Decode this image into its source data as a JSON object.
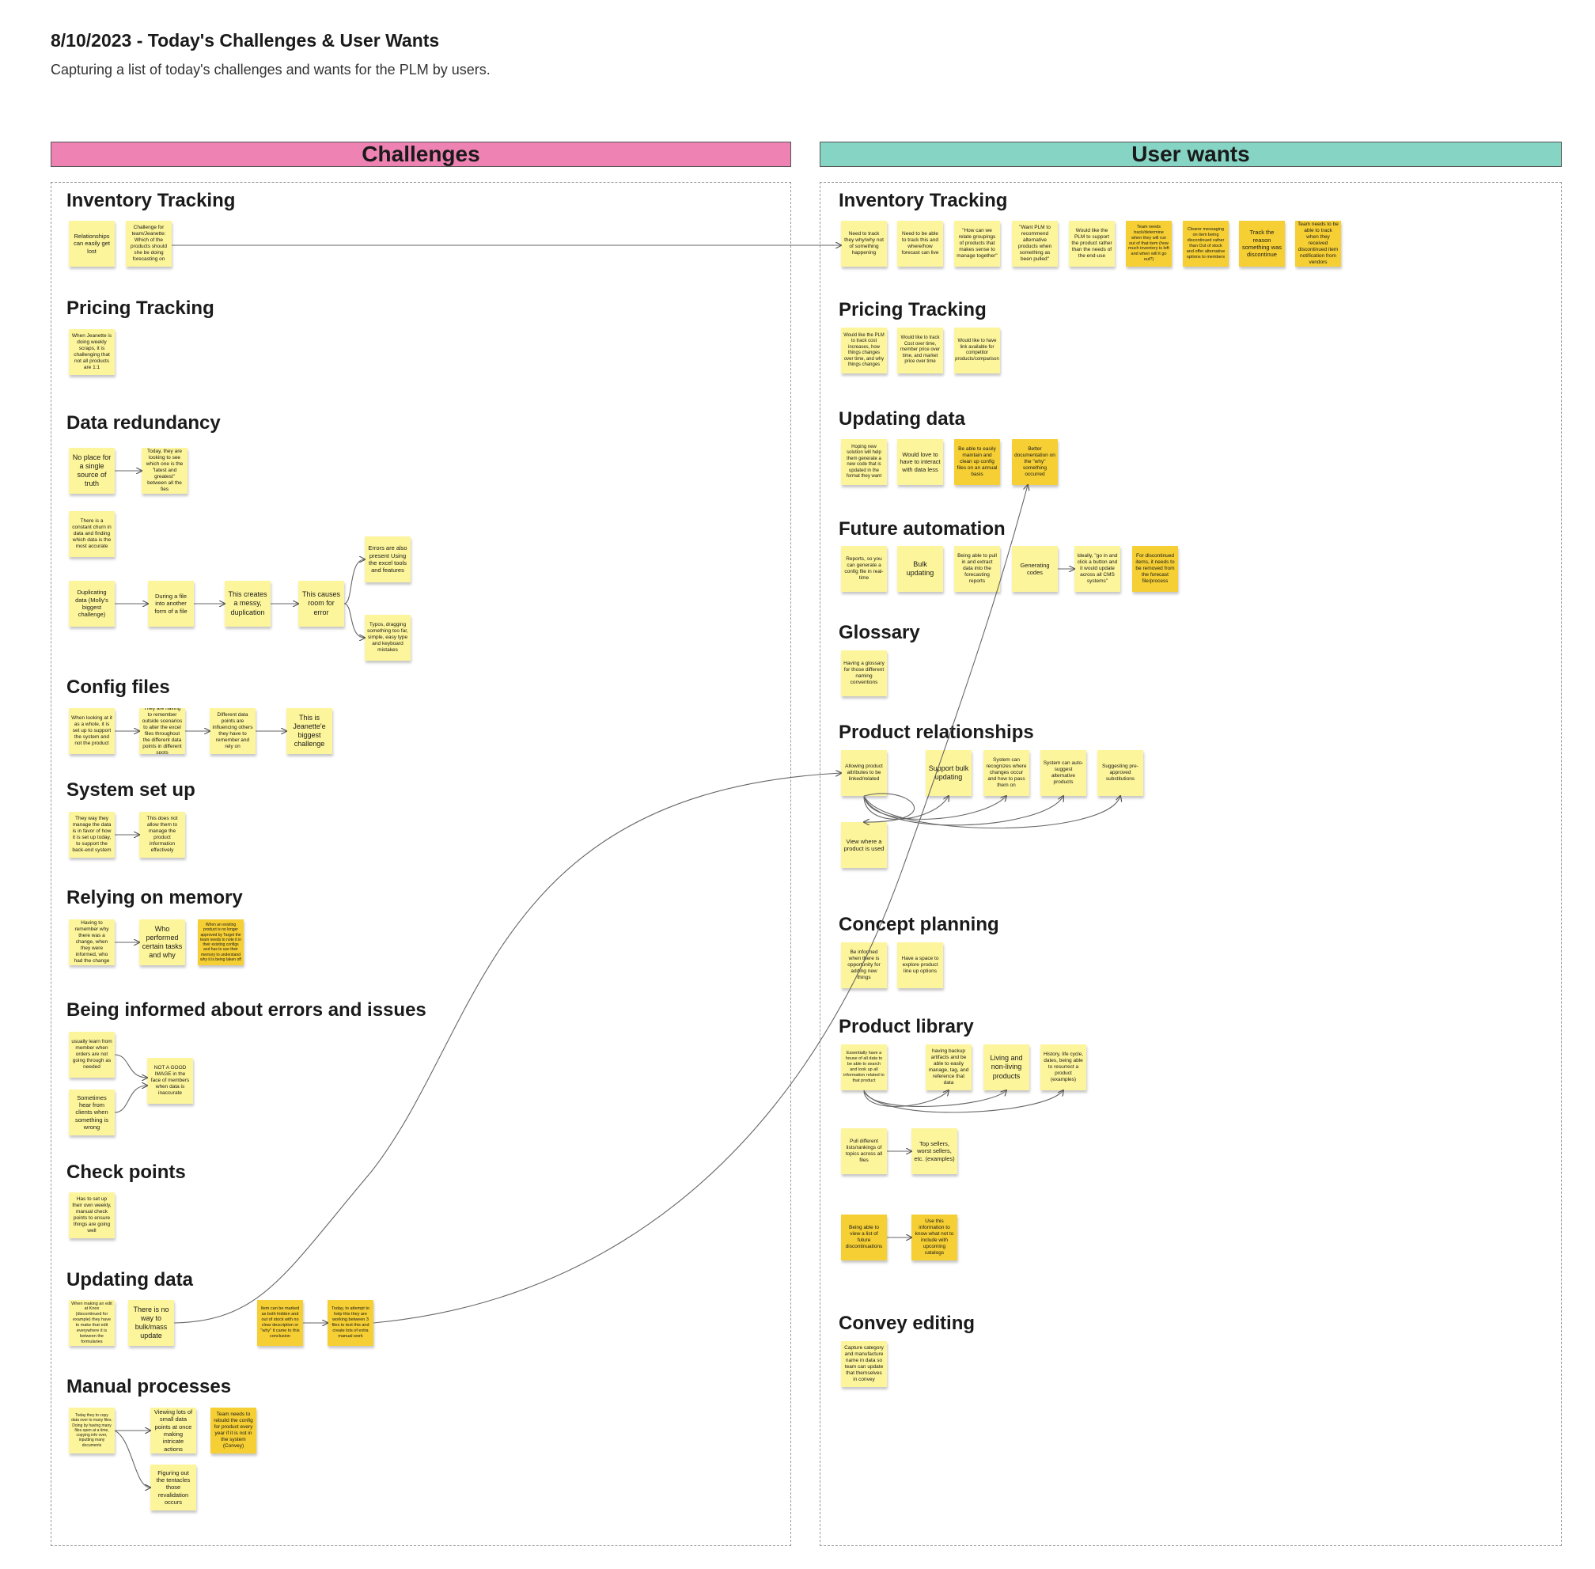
{
  "board": {
    "title": "8/10/2023 - Today's Challenges & User Wants",
    "subtitle": "Capturing a list of today's challenges and wants for the PLM by users."
  },
  "headers": {
    "challenges": "Challenges",
    "user_wants": "User wants"
  },
  "colors": {
    "challenges_header": "#ee82b3",
    "user_wants_header": "#86d4c4",
    "sticky_light": "#fdf59b",
    "sticky_dark": "#f5cf34"
  },
  "challenges": {
    "inventory_tracking": {
      "title": "Inventory Tracking",
      "notes": [
        "Relationships can easily get lost",
        "Challenge for team/Jeanette: Which of the products should she be doing forecasting on"
      ]
    },
    "pricing_tracking": {
      "title": "Pricing Tracking",
      "notes": [
        "When Jeanette is doing weekly scraps, it is challenging that not all products are 1:1"
      ]
    },
    "data_redundancy": {
      "title": "Data redundancy",
      "notes": [
        "No place for a single source of truth",
        "Today, they are looking to see which one is the \"latest and greatest\" between all the fies",
        "There is a constant churn in data and finding which data is the most accurate",
        "Duplicating data (Molly's biggest challenge)",
        "During a file into another form of a file",
        "This creates a messy, duplication",
        "This causes room for error",
        "Errors are also present Using the excel tools and features",
        "Typos, dragging something too far, simple, easy type and keyboard mistakes"
      ]
    },
    "config_files": {
      "title": "Config files",
      "notes": [
        "When looking at it as a whole, it is set up to support the system and not the product",
        "They are having to remember outside scenarios to alter the excel files throughout the different data points in different spots",
        "Different data points are influencing others they have to remember and rely on",
        "This is Jeanette'e biggest challenge"
      ]
    },
    "system_set_up": {
      "title": "System set up",
      "notes": [
        "They way they manage the data is in favor of how it is set up today, to support the back-end system",
        "This does not allow them to manage the product information effectively"
      ]
    },
    "relying_on_memory": {
      "title": "Relying on memory",
      "notes": [
        "Having to remember why there was a change, when they were informed, who had the change",
        "Who performed certain tasks and why",
        "When an existing product is no longer approved by Target the team needs to note it in their existing configs and has to use their memory to understand why it is being taken off"
      ]
    },
    "being_informed": {
      "title": "Being informed about errors and issues",
      "notes": [
        "usually learn from member when orders are not going through as needed",
        "Sometimes hear from clients when something is wrong",
        "NOT A GOOD IMAGE in the face of members when data is inaccurate"
      ]
    },
    "check_points": {
      "title": "Check points",
      "notes": [
        "Has to set up their own weekly, manual check points to ensure things are going well"
      ]
    },
    "updating_data": {
      "title": "Updating data",
      "notes": [
        "When making an edit at Knox (discontinued for example) they have to make that edit everywhere it is between the formularies",
        "There is no way to bulk/mass update",
        "Item can be marked as both hidden and out of stock with no clear description or \"why\" it came to this conclusion",
        "Today, to attempt to help this they are working between 3 files to test this and create lots of extra manual work"
      ]
    },
    "manual_processes": {
      "title": "Manual processes",
      "notes": [
        "Today they to copy data over to many files. Doing by having many files open at a time, copying info over, inputting many documents",
        "Viewing lots of small data points at once making intricate actions",
        "Team needs to rebuild the config for product every year if it is not in the system (Convey)",
        "Figuring out the tentacles those revalidation occurs"
      ]
    }
  },
  "user_wants": {
    "inventory_tracking": {
      "title": "Inventory Tracking",
      "notes": [
        "Need to track they why/why not of something happening",
        "Need to be able to track this and where/how forecast can live",
        "\"How can we relate groupings of products that makes sense to manage together\"",
        "\"Want PLM to recommend alternative products when something as been pulled\"",
        "Would like the PLM to support the product rather than the needs of the end-use",
        "Team needs track/determine when they will run out of that item (how much inventory is left and when will it go out?)",
        "Clearer messaging on item being discontinued rather than Out of stock and offer alternative options to members",
        "Track the reason something was discontinue",
        "Team needs to be able to track when they received discontinued item notification from vendors"
      ]
    },
    "pricing_tracking": {
      "title": "Pricing Tracking",
      "notes": [
        "Would like the PLM to track cost increases, how things changes over time, and why things changes",
        "Would like to track Cost over time, member price over time, and market price over time",
        "Would like to have link available for competitor products/comparison"
      ]
    },
    "updating_data": {
      "title": "Updating data",
      "notes": [
        "Hoping new solution will help them generate a new code that is updated in the format they want",
        "Would love to have to interact with data less",
        "Be able to easily maintain and clean up config files on an annual basis",
        "Better documentation on the \"why\" something occurred"
      ]
    },
    "future_automation": {
      "title": "Future automation",
      "notes": [
        "Reports, so you can generate a config file in real-time",
        "Bulk updating",
        "Being able to pull in and extract data into the forecasting reports",
        "Generating codes",
        "Ideally, \"go in and click a button and it would update across all CMS systems\"",
        "For discontinued items, it needs to be removed from the forecast file/process"
      ]
    },
    "glossary": {
      "title": "Glossary",
      "notes": [
        "Having a glossary for those different naming conventions"
      ]
    },
    "product_relationships": {
      "title": "Product relationships",
      "notes": [
        "Allowing product attributes to be linked/related",
        "Support bulk updating",
        "System can recognizes where changes occur and how to pass them on",
        "System can auto-suggest alternative products",
        "Suggesting pre-approved substitutions",
        "View where a product is used"
      ]
    },
    "concept_planning": {
      "title": "Concept planning",
      "notes": [
        "Be informed when there is opportunity for adding new things",
        "Have a space to explore product line up options"
      ]
    },
    "product_library": {
      "title": "Product library",
      "notes": [
        "Essentially have a house of all data to be able to search and look up all information related to that product",
        "having backup artifacts and be able to easily manage, tag, and reference that data",
        "Living and non-living products",
        "History, life cycle, dates, being able to resurrect a product (examples)",
        "Pull different lists/rankings of topics across all files",
        "Top sellers, worst sellers, etc. (examples)",
        "Being able to view a list of future discontinuations",
        "Use this information to know what not to include with upcoming catalogs"
      ]
    },
    "convey_editing": {
      "title": "Convey editing",
      "notes": [
        "Capture category and manufacture name in data so team can update that themselves in convey"
      ]
    }
  }
}
